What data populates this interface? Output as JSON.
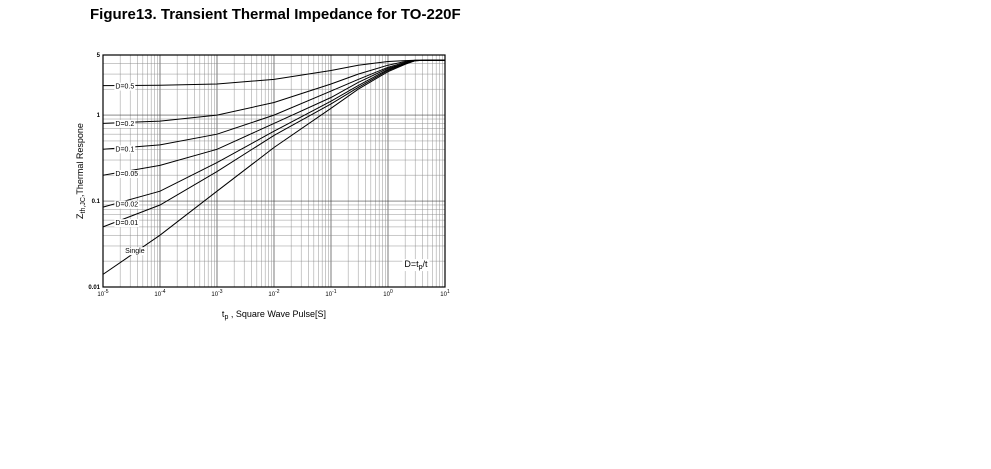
{
  "figure_title": "Figure13. Transient Thermal Impedance for TO-220F",
  "chart_data": {
    "type": "line",
    "title": "Figure13. Transient Thermal Impedance for TO-220F",
    "xlabel": {
      "main": "t",
      "sub": "p",
      "rest": " ,  Square Wave Pulse[S]"
    },
    "ylabel": {
      "main": "Z",
      "sub": "th,JC",
      "rest": ",Thermal Respone"
    },
    "x_scale": "log",
    "y_scale": "log",
    "xlim": [
      1e-05,
      10
    ],
    "ylim": [
      0.01,
      5
    ],
    "grid": true,
    "x_ticks": [
      {
        "base": "10",
        "exp": "-5"
      },
      {
        "base": "10",
        "exp": "-4"
      },
      {
        "base": "10",
        "exp": "-3"
      },
      {
        "base": "10",
        "exp": "-2"
      },
      {
        "base": "10",
        "exp": "-1"
      },
      {
        "base": "10",
        "exp": "0"
      },
      {
        "base": "10",
        "exp": "1"
      }
    ],
    "y_ticks": [
      "0.01",
      "0.1",
      "1",
      "5"
    ],
    "annotation": {
      "main": "D=t",
      "sub": "p",
      "rest": "/t"
    },
    "series": [
      {
        "name": "D=0.5",
        "x": [
          1e-05,
          0.0001,
          0.001,
          0.01,
          0.1,
          0.3,
          1,
          2,
          3,
          5,
          10
        ],
        "y": [
          2.2,
          2.22,
          2.3,
          2.6,
          3.3,
          3.8,
          4.2,
          4.3,
          4.35,
          4.35,
          4.35
        ]
      },
      {
        "name": "D=0.2",
        "x": [
          1e-05,
          0.0001,
          0.001,
          0.01,
          0.1,
          0.3,
          1,
          2,
          3,
          5,
          10
        ],
        "y": [
          0.8,
          0.85,
          1.0,
          1.4,
          2.3,
          3.0,
          3.8,
          4.2,
          4.35,
          4.35,
          4.35
        ]
      },
      {
        "name": "D=0.1",
        "x": [
          1e-05,
          0.0001,
          0.001,
          0.01,
          0.1,
          0.3,
          1,
          2,
          3,
          5,
          10
        ],
        "y": [
          0.4,
          0.45,
          0.6,
          1.0,
          1.9,
          2.6,
          3.6,
          4.1,
          4.3,
          4.35,
          4.35
        ]
      },
      {
        "name": "D=0.05",
        "x": [
          1e-05,
          0.0001,
          0.001,
          0.01,
          0.1,
          0.3,
          1,
          2,
          3,
          5,
          10
        ],
        "y": [
          0.2,
          0.26,
          0.4,
          0.8,
          1.6,
          2.4,
          3.5,
          4.0,
          4.3,
          4.35,
          4.35
        ]
      },
      {
        "name": "D=0.02",
        "x": [
          1e-05,
          0.0001,
          0.001,
          0.01,
          0.1,
          0.3,
          1,
          2,
          3,
          5,
          10
        ],
        "y": [
          0.085,
          0.13,
          0.28,
          0.65,
          1.45,
          2.2,
          3.4,
          4.0,
          4.3,
          4.35,
          4.35
        ]
      },
      {
        "name": "D=0.01",
        "x": [
          1e-05,
          0.0001,
          0.001,
          0.01,
          0.1,
          0.3,
          1,
          2,
          3,
          5,
          10
        ],
        "y": [
          0.05,
          0.09,
          0.22,
          0.58,
          1.35,
          2.1,
          3.3,
          3.95,
          4.3,
          4.35,
          4.35
        ]
      },
      {
        "name": "Single",
        "x": [
          1e-05,
          0.0001,
          0.001,
          0.01,
          0.1,
          0.3,
          1,
          2,
          3,
          5,
          10
        ],
        "y": [
          0.014,
          0.04,
          0.13,
          0.42,
          1.2,
          2.0,
          3.2,
          3.9,
          4.3,
          4.35,
          4.35
        ]
      }
    ]
  }
}
